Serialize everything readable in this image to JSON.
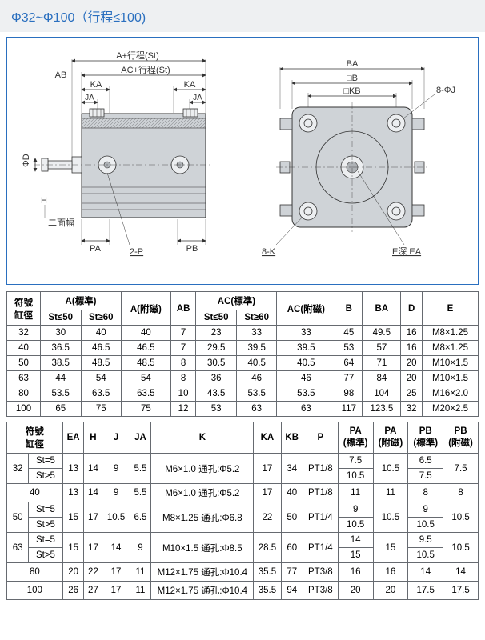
{
  "title": "Φ32~Φ100（行程≤100)",
  "diagram_labels": {
    "A_stroke": "A+行程(St)",
    "AC_stroke": "AC+行程(St)",
    "AB": "AB",
    "KA": "KA",
    "JA": "JA",
    "phiD": "ΦD",
    "H": "H",
    "two_face": "二面幅",
    "PA": "PA",
    "two_P": "2-P",
    "PB": "PB",
    "BA": "BA",
    "sqB": "□B",
    "sqKB": "□KB",
    "eight_phiJ": "8-ΦJ",
    "eight_K": "8-K",
    "E_depth_EA": "E深 EA"
  },
  "table1": {
    "headers": {
      "symbol_bore": "符號\n缸徑",
      "A_std": "A(標準)",
      "A_mag": "A(附磁)",
      "AB": "AB",
      "AC_std": "AC(標準)",
      "AC_mag": "AC(附磁)",
      "B": "B",
      "BA": "BA",
      "D": "D",
      "E": "E",
      "St_le50": "St≤50",
      "St_ge60": "St≥60"
    },
    "rows": [
      {
        "bore": "32",
        "A50": "30",
        "A60": "40",
        "Amag": "40",
        "AB": "7",
        "AC50": "23",
        "AC60": "33",
        "ACmag": "33",
        "B": "45",
        "BA": "49.5",
        "D": "16",
        "E": "M8×1.25"
      },
      {
        "bore": "40",
        "A50": "36.5",
        "A60": "46.5",
        "Amag": "46.5",
        "AB": "7",
        "AC50": "29.5",
        "AC60": "39.5",
        "ACmag": "39.5",
        "B": "53",
        "BA": "57",
        "D": "16",
        "E": "M8×1.25"
      },
      {
        "bore": "50",
        "A50": "38.5",
        "A60": "48.5",
        "Amag": "48.5",
        "AB": "8",
        "AC50": "30.5",
        "AC60": "40.5",
        "ACmag": "40.5",
        "B": "64",
        "BA": "71",
        "D": "20",
        "E": "M10×1.5"
      },
      {
        "bore": "63",
        "A50": "44",
        "A60": "54",
        "Amag": "54",
        "AB": "8",
        "AC50": "36",
        "AC60": "46",
        "ACmag": "46",
        "B": "77",
        "BA": "84",
        "D": "20",
        "E": "M10×1.5"
      },
      {
        "bore": "80",
        "A50": "53.5",
        "A60": "63.5",
        "Amag": "63.5",
        "AB": "10",
        "AC50": "43.5",
        "AC60": "53.5",
        "ACmag": "53.5",
        "B": "98",
        "BA": "104",
        "D": "25",
        "E": "M16×2.0"
      },
      {
        "bore": "100",
        "A50": "65",
        "A60": "75",
        "Amag": "75",
        "AB": "12",
        "AC50": "53",
        "AC60": "63",
        "ACmag": "63",
        "B": "117",
        "BA": "123.5",
        "D": "32",
        "E": "M20×2.5"
      }
    ]
  },
  "table2": {
    "headers": {
      "symbol_bore": "符號\n缸徑",
      "EA": "EA",
      "H": "H",
      "J": "J",
      "JA": "JA",
      "K": "K",
      "KA": "KA",
      "KB": "KB",
      "P": "P",
      "PA_std": "PA\n(標準)",
      "PA_mag": "PA\n(附磁)",
      "PB_std": "PB\n(標準)",
      "PB_mag": "PB\n(附磁)",
      "St_eq5": "St=5",
      "St_gt5": "St>5"
    },
    "rows": [
      {
        "bore": "32",
        "sub": [
          "St=5",
          "St>5"
        ],
        "EA": "13",
        "H": "14",
        "J": "9",
        "JA": "5.5",
        "K": "M6×1.0 通孔:Φ5.2",
        "KA": "17",
        "KB": "34",
        "P": "PT1/8",
        "PAstd": [
          "7.5",
          "10.5"
        ],
        "PAmag": "10.5",
        "PBstd": [
          "6.5",
          "7.5"
        ],
        "PBmag": "7.5"
      },
      {
        "bore": "40",
        "sub": null,
        "EA": "13",
        "H": "14",
        "J": "9",
        "JA": "5.5",
        "K": "M6×1.0 通孔:Φ5.2",
        "KA": "17",
        "KB": "40",
        "P": "PT1/8",
        "PAstd": "11",
        "PAmag": "11",
        "PBstd": "8",
        "PBmag": "8"
      },
      {
        "bore": "50",
        "sub": [
          "St=5",
          "St>5"
        ],
        "EA": "15",
        "H": "17",
        "J": "10.5",
        "JA": "6.5",
        "K": "M8×1.25 通孔:Φ6.8",
        "KA": "22",
        "KB": "50",
        "P": "PT1/4",
        "PAstd": [
          "9",
          "10.5"
        ],
        "PAmag": "10.5",
        "PBstd": [
          "9",
          "10.5"
        ],
        "PBmag": "10.5"
      },
      {
        "bore": "63",
        "sub": [
          "St=5",
          "St>5"
        ],
        "EA": "15",
        "H": "17",
        "J": "14",
        "JA": "9",
        "K": "M10×1.5 通孔:Φ8.5",
        "KA": "28.5",
        "KB": "60",
        "P": "PT1/4",
        "PAstd": [
          "14",
          "15"
        ],
        "PAmag": "15",
        "PBstd": [
          "9.5",
          "10.5"
        ],
        "PBmag": "10.5"
      },
      {
        "bore": "80",
        "sub": null,
        "EA": "20",
        "H": "22",
        "J": "17",
        "JA": "11",
        "K": "M12×1.75 通孔:Φ10.4",
        "KA": "35.5",
        "KB": "77",
        "P": "PT3/8",
        "PAstd": "16",
        "PAmag": "16",
        "PBstd": "14",
        "PBmag": "14"
      },
      {
        "bore": "100",
        "sub": null,
        "EA": "26",
        "H": "27",
        "J": "17",
        "JA": "11",
        "K": "M12×1.75 通孔:Φ10.4",
        "KA": "35.5",
        "KB": "94",
        "P": "PT3/8",
        "PAstd": "20",
        "PAmag": "20",
        "PBstd": "17.5",
        "PBmag": "17.5"
      }
    ]
  },
  "colors": {
    "accent_blue": "#2a6fbf",
    "border_gray": "#666a70",
    "fill_gray": "#cfd3d7",
    "fill_light": "#eceef0"
  }
}
